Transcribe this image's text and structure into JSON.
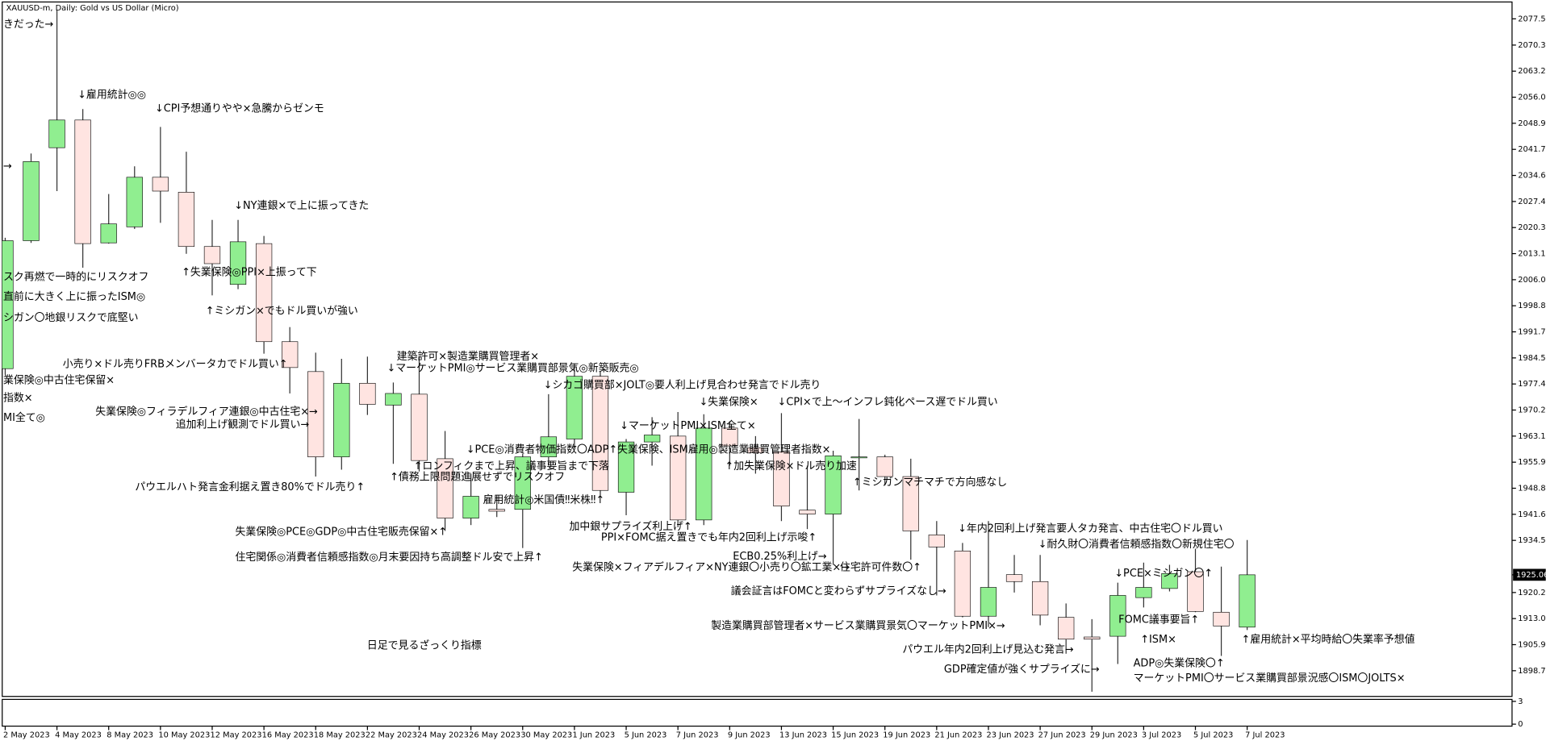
{
  "chart_data": {
    "type": "candlestick",
    "title": "XAUUSD-m, Daily:  Gold vs US Dollar (Micro)",
    "categories": [
      "2 May 2023",
      null,
      "4 May 2023",
      null,
      "8 May 2023",
      null,
      "10 May 2023",
      null,
      "12 May 2023",
      null,
      "16 May 2023",
      null,
      "18 May 2023",
      null,
      "22 May 2023",
      null,
      "24 May 2023",
      null,
      "26 May 2023",
      null,
      "30 May 2023",
      null,
      "1 Jun 2023",
      null,
      "5 Jun 2023",
      null,
      "7 Jun 2023",
      null,
      "9 Jun 2023",
      null,
      "13 Jun 2023",
      null,
      "15 Jun 2023",
      null,
      "19 Jun 2023",
      null,
      "21 Jun 2023",
      null,
      "23 Jun 2023",
      null,
      "27 Jun 2023",
      null,
      "29 Jun 2023",
      null,
      "3 Jul 2023",
      null,
      "5 Jul 2023",
      null,
      "7 Jul 2023"
    ],
    "open": [
      1981.6,
      2016.7,
      2042.2,
      2049.8,
      2016.1,
      2020.5,
      2034.1,
      2030.0,
      2015.1,
      2004.7,
      2015.9,
      1989.0,
      1980.8,
      1957.4,
      1977.6,
      1971.6,
      1974.6,
      1956.9,
      1940.6,
      1943.0,
      1943.0,
      1957.4,
      1962.3,
      1979.5,
      1947.7,
      1961.5,
      1963.1,
      1940.1,
      1965.3,
      1959.9,
      1958.8,
      1942.8,
      1941.7,
      1957.4,
      1957.4,
      1952.0,
      1936.0,
      1931.6,
      1913.7,
      1925.1,
      1923.2,
      1913.4,
      1908.0,
      1908.2,
      1918.8,
      1921.3,
      1925.9,
      1914.8,
      1910.7
    ],
    "high": [
      2017.5,
      2040.6,
      2080.0,
      2052.8,
      2029.5,
      2037.1,
      2047.9,
      2041.1,
      2022.4,
      2022.4,
      2018.0,
      1993.0,
      1986.0,
      1984.3,
      1984.9,
      1977.8,
      1984.9,
      1964.5,
      1952.8,
      1946.8,
      1958.3,
      1974.6,
      1983.0,
      1980.8,
      1962.3,
      1968.3,
      1969.7,
      1969.1,
      1967.2,
      1963.1,
      1969.4,
      1955.0,
      1959.1,
      1967.8,
      1958.0,
      1956.9,
      1939.8,
      1933.8,
      1939.8,
      1930.5,
      1930.5,
      1917.2,
      1912.9,
      1922.9,
      1928.4,
      1927.8,
      1932.2,
      1927.3,
      1934.6
    ],
    "low": [
      1980.0,
      2016.1,
      2030.3,
      2009.3,
      2015.9,
      2019.9,
      2021.6,
      2013.1,
      2001.7,
      2003.4,
      1985.7,
      1974.8,
      1952.0,
      1953.9,
      1968.9,
      1955.5,
      1953.4,
      1937.1,
      1938.7,
      1940.9,
      1932.4,
      1955.0,
      1959.9,
      1946.8,
      1941.4,
      1955.0,
      1938.1,
      1938.7,
      1955.0,
      1952.8,
      1939.8,
      1937.6,
      1927.8,
      1948.2,
      1949.6,
      1929.2,
      1919.4,
      1913.4,
      1910.7,
      1920.2,
      1911.2,
      1903.4,
      1893.0,
      1900.6,
      1916.1,
      1920.5,
      1914.8,
      1902.8,
      1909.9
    ],
    "close": [
      2016.7,
      2038.4,
      2049.8,
      2015.9,
      2021.3,
      2034.1,
      2030.3,
      2015.1,
      2010.4,
      2016.4,
      1989.0,
      1981.9,
      1957.4,
      1977.6,
      1971.8,
      1974.8,
      1956.4,
      1940.6,
      1946.6,
      1942.5,
      1957.4,
      1962.9,
      1979.5,
      1948.2,
      1961.5,
      1963.4,
      1940.1,
      1965.3,
      1960.4,
      1958.5,
      1943.9,
      1941.7,
      1957.7,
      1957.4,
      1952.0,
      1937.1,
      1932.7,
      1913.7,
      1921.6,
      1923.2,
      1914.0,
      1907.4,
      1907.4,
      1919.4,
      1921.6,
      1925.4,
      1915.0,
      1911.0,
      1925.06
    ],
    "up_color": "#90ee90",
    "down_color": "#ffe4e1",
    "outline_color": "#000000",
    "ylim": [
      1891.7,
      2081.9
    ],
    "yticks": [
      2077.55,
      2070.35,
      {
        "value": 2063.2,
        "label": "2063.20"
      },
      2056.05,
      {
        "value": 2048.9,
        "label": "2048.90"
      },
      2041.75,
      {
        "value": 2034.6,
        "label": "2034.60"
      },
      2027.45,
      {
        "value": 2020.3,
        "label": "2020.30"
      },
      2013.15,
      {
        "value": 2006,
        "label": "2006.00"
      },
      1998.85,
      {
        "value": 1991.7,
        "label": "1991.70"
      },
      1984.55,
      {
        "value": 1977.4,
        "label": "1977.40"
      },
      1970.25,
      {
        "value": 1963.1,
        "label": "1963.10"
      },
      1955.95,
      {
        "value": 1948.8,
        "label": "1948.80"
      },
      1941.65,
      {
        "value": 1934.5,
        "label": "1934.50"
      },
      {
        "value": 1920.2,
        "label": "1920.20"
      },
      1913.05,
      {
        "value": 1905.9,
        "label": "1905.90"
      },
      1898.75
    ],
    "last_price": 1925.06,
    "indicator": {
      "ylim": [
        0,
        3
      ],
      "yticks": [
        0,
        3
      ]
    },
    "annotations": [
      "きだった→",
      "↓雇用統計◎◎",
      "↓CPI予想通りやや×急騰からゼンモ",
      "→",
      "↓NY連銀×で上に振ってきた",
      "スク再燃で一時的にリスクオフ",
      "↑失業保険◎PPI×上振って下",
      "直前に大きく上に振ったISM◎",
      "↑ミシガン×でもドル買いが強い",
      "シガン〇地銀リスクで底堅い",
      "建築許可×製造業購買管理者×",
      "小売り×ドル売りFRBメンバータカでドル買い↑",
      "↓マーケットPMI◎サービス業購買部景気◎新築販売◎",
      "業保険◎中古住宅保留×",
      "↓シカゴ購買部×JOLT◎要人利上げ見合わせ発言でドル売り",
      "指数×",
      "↓失業保険×",
      "↓CPI×で上～インフレ鈍化ペース遅でドル買い",
      "失業保険◎フィラデルフィア連銀◎中古住宅×→",
      "MI全て◎",
      "↓マーケットPMI×ISM全て×",
      "追加利上げ観測でドル買い→",
      "↓PCE◎消費者物価指数〇ADP↑失業保険、ISM雇用◎製造業購買管理者指数×",
      "↑ロンフィクまで上昇、議事要旨まで下落",
      "↑加失業保険×ドル売り加速",
      "↑債務上限問題進展せずでリスクオフ",
      "↑ミシガンマチマチで方向感なし",
      "パウエルハト発言金利据え置き80%でドル売り↑",
      "雇用統計◎米国債‼米株‼↑",
      "加中銀サプライズ利上げ↑",
      "↓年内2回利上げ発言要人タカ発言、中古住宅〇ドル買い",
      "失業保険◎PCE◎GDP◎中古住宅販売保留×↑",
      "PPI×FOMC据え置きでも年内2回利上げ示唆↑",
      "↓耐久財〇消費者信頼感指数〇新規住宅〇",
      "住宅関係◎消費者信頼感指数◎月末要因持ち高調整ドル安で上昇↑",
      "ECB0.25%利上げ→",
      "失業保険×フィアデルフィア×NY連銀〇小売り〇鉱工業×→",
      "住宅許可件数〇↑",
      "↓PCE×ミシガン〇↑",
      "議会証言はFOMCと変わらずサプライズなし→",
      "FOMC議事要旨↑",
      "製造業購買部管理者×サービス業購買景気〇マーケットPMI×→",
      "↑ISM×",
      "↑雇用統計×平均時給〇失業率予想値",
      "日足で見るざっくり指標",
      "パウエル年内2回利上げ見込む発言→",
      "ADP◎失業保険〇↑",
      "GDP確定値が強くサプライズに→",
      "マーケットPMI〇サービス業購買部景況感〇ISM〇JOLTS×"
    ]
  }
}
